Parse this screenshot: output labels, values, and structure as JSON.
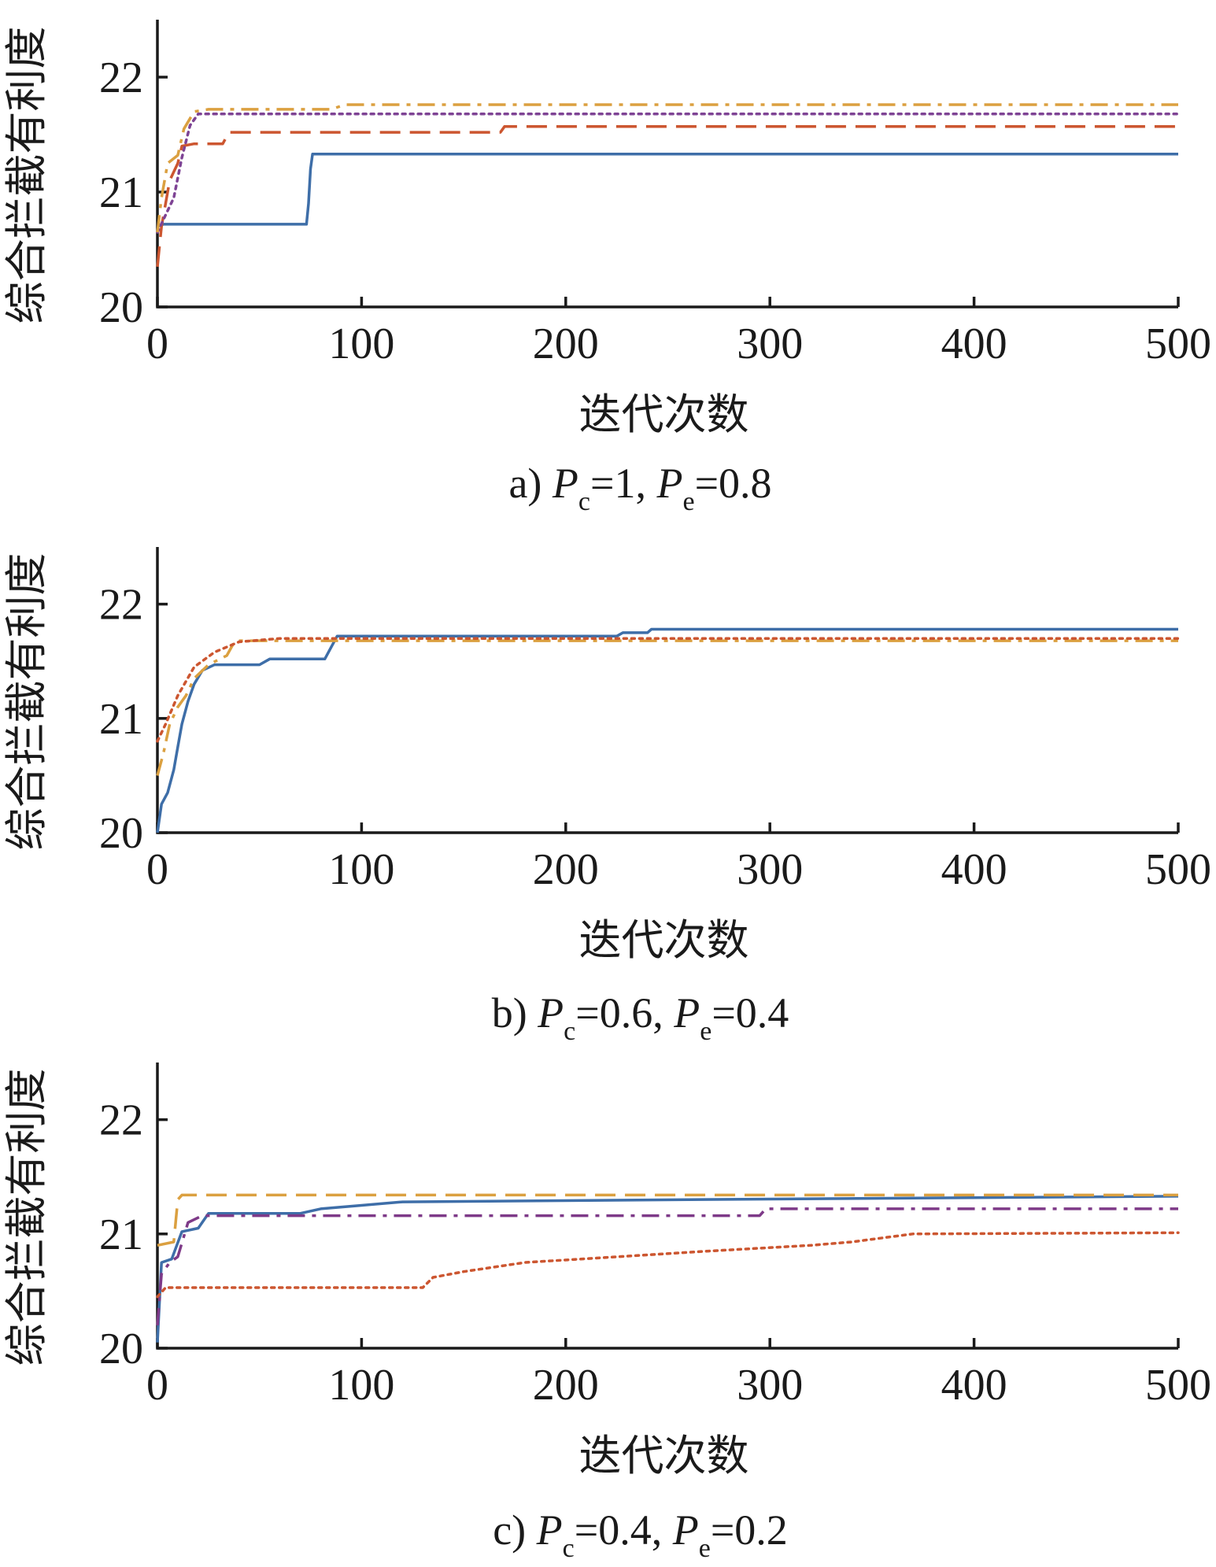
{
  "chart_data": [
    {
      "type": "line",
      "caption": {
        "prefix": "a) ",
        "p1": "P",
        "s1": "c",
        "v1": "=1, ",
        "p2": "P",
        "s2": "e",
        "v2": "=0.8"
      },
      "xlabel": "迭代次数",
      "ylabel": "综合拦截有利度",
      "xlim": [
        0,
        500
      ],
      "ylim": [
        20,
        22.5
      ],
      "x_ticks": [
        0,
        100,
        200,
        300,
        400,
        500
      ],
      "y_ticks": [
        20,
        21,
        22
      ],
      "series": [
        {
          "style": "solid",
          "color": "#3e6ea8",
          "points": [
            [
              0,
              20.7
            ],
            [
              3,
              20.72
            ],
            [
              73,
              20.72
            ],
            [
              74,
              20.9
            ],
            [
              75,
              21.2
            ],
            [
              76,
              21.33
            ],
            [
              500,
              21.33
            ]
          ]
        },
        {
          "style": "dashed",
          "color": "#cc5630",
          "points": [
            [
              0,
              20.35
            ],
            [
              2,
              20.7
            ],
            [
              6,
              21.1
            ],
            [
              10,
              21.25
            ],
            [
              12,
              21.4
            ],
            [
              18,
              21.42
            ],
            [
              32,
              21.42
            ],
            [
              35,
              21.52
            ],
            [
              168,
              21.52
            ],
            [
              170,
              21.57
            ],
            [
              500,
              21.57
            ]
          ]
        },
        {
          "style": "dotted",
          "color": "#7e4394",
          "points": [
            [
              0,
              20.65
            ],
            [
              4,
              20.8
            ],
            [
              8,
              20.95
            ],
            [
              12,
              21.3
            ],
            [
              16,
              21.58
            ],
            [
              20,
              21.68
            ],
            [
              500,
              21.68
            ]
          ]
        },
        {
          "style": "dashdot",
          "color": "#dba040",
          "points": [
            [
              0,
              20.65
            ],
            [
              2,
              20.95
            ],
            [
              5,
              21.25
            ],
            [
              10,
              21.32
            ],
            [
              13,
              21.55
            ],
            [
              18,
              21.7
            ],
            [
              25,
              21.72
            ],
            [
              85,
              21.72
            ],
            [
              92,
              21.76
            ],
            [
              500,
              21.76
            ]
          ]
        }
      ]
    },
    {
      "type": "line",
      "caption": {
        "prefix": "b) ",
        "p1": "P",
        "s1": "c",
        "v1": "=0.6, ",
        "p2": "P",
        "s2": "e",
        "v2": "=0.4"
      },
      "xlabel": "迭代次数",
      "ylabel": "综合拦截有利度",
      "xlim": [
        0,
        500
      ],
      "ylim": [
        20,
        22.5
      ],
      "x_ticks": [
        0,
        100,
        200,
        300,
        400,
        500
      ],
      "y_ticks": [
        20,
        21,
        22
      ],
      "series": [
        {
          "style": "solid",
          "color": "#3e6ea8",
          "points": [
            [
              0,
              20.0
            ],
            [
              2,
              20.25
            ],
            [
              5,
              20.35
            ],
            [
              8,
              20.55
            ],
            [
              10,
              20.75
            ],
            [
              12,
              20.95
            ],
            [
              15,
              21.15
            ],
            [
              18,
              21.3
            ],
            [
              22,
              21.42
            ],
            [
              28,
              21.47
            ],
            [
              50,
              21.47
            ],
            [
              55,
              21.52
            ],
            [
              82,
              21.52
            ],
            [
              85,
              21.62
            ],
            [
              88,
              21.72
            ],
            [
              225,
              21.72
            ],
            [
              228,
              21.75
            ],
            [
              240,
              21.75
            ],
            [
              242,
              21.78
            ],
            [
              500,
              21.78
            ]
          ]
        },
        {
          "style": "dashdot",
          "color": "#dba040",
          "points": [
            [
              0,
              20.5
            ],
            [
              3,
              20.7
            ],
            [
              6,
              20.95
            ],
            [
              10,
              21.1
            ],
            [
              14,
              21.2
            ],
            [
              18,
              21.35
            ],
            [
              25,
              21.47
            ],
            [
              34,
              21.55
            ],
            [
              38,
              21.68
            ],
            [
              500,
              21.68
            ]
          ]
        },
        {
          "style": "dotted",
          "color": "#cc5630",
          "points": [
            [
              0,
              20.8
            ],
            [
              4,
              20.95
            ],
            [
              10,
              21.2
            ],
            [
              18,
              21.45
            ],
            [
              28,
              21.58
            ],
            [
              40,
              21.67
            ],
            [
              60,
              21.7
            ],
            [
              500,
              21.7
            ]
          ]
        }
      ]
    },
    {
      "type": "line",
      "caption": {
        "prefix": "c) ",
        "p1": "P",
        "s1": "c",
        "v1": "=0.4, ",
        "p2": "P",
        "s2": "e",
        "v2": "=0.2"
      },
      "xlabel": "迭代次数",
      "ylabel": "综合拦截有利度",
      "xlim": [
        0,
        500
      ],
      "ylim": [
        20,
        22.5
      ],
      "x_ticks": [
        0,
        100,
        200,
        300,
        400,
        500
      ],
      "y_ticks": [
        20,
        21,
        22
      ],
      "series": [
        {
          "style": "solid",
          "color": "#3e6ea8",
          "points": [
            [
              0,
              20.05
            ],
            [
              2,
              20.75
            ],
            [
              7,
              20.78
            ],
            [
              12,
              21.02
            ],
            [
              20,
              21.05
            ],
            [
              25,
              21.18
            ],
            [
              70,
              21.18
            ],
            [
              80,
              21.22
            ],
            [
              100,
              21.25
            ],
            [
              120,
              21.28
            ],
            [
              260,
              21.3
            ],
            [
              500,
              21.33
            ]
          ]
        },
        {
          "style": "dashed",
          "color": "#dba040",
          "points": [
            [
              0,
              20.9
            ],
            [
              8,
              20.93
            ],
            [
              10,
              21.3
            ],
            [
              12,
              21.34
            ],
            [
              500,
              21.34
            ]
          ]
        },
        {
          "style": "dashdot",
          "color": "#7e3a88",
          "points": [
            [
              0,
              20.2
            ],
            [
              2,
              20.65
            ],
            [
              6,
              20.75
            ],
            [
              10,
              20.8
            ],
            [
              15,
              21.1
            ],
            [
              22,
              21.16
            ],
            [
              295,
              21.16
            ],
            [
              298,
              21.22
            ],
            [
              500,
              21.22
            ]
          ]
        },
        {
          "style": "dotted",
          "color": "#cc5630",
          "points": [
            [
              0,
              20.45
            ],
            [
              4,
              20.53
            ],
            [
              130,
              20.53
            ],
            [
              135,
              20.62
            ],
            [
              150,
              20.67
            ],
            [
              180,
              20.75
            ],
            [
              270,
              20.85
            ],
            [
              320,
              20.9
            ],
            [
              340,
              20.93
            ],
            [
              370,
              21.0
            ],
            [
              500,
              21.01
            ]
          ]
        }
      ]
    }
  ]
}
